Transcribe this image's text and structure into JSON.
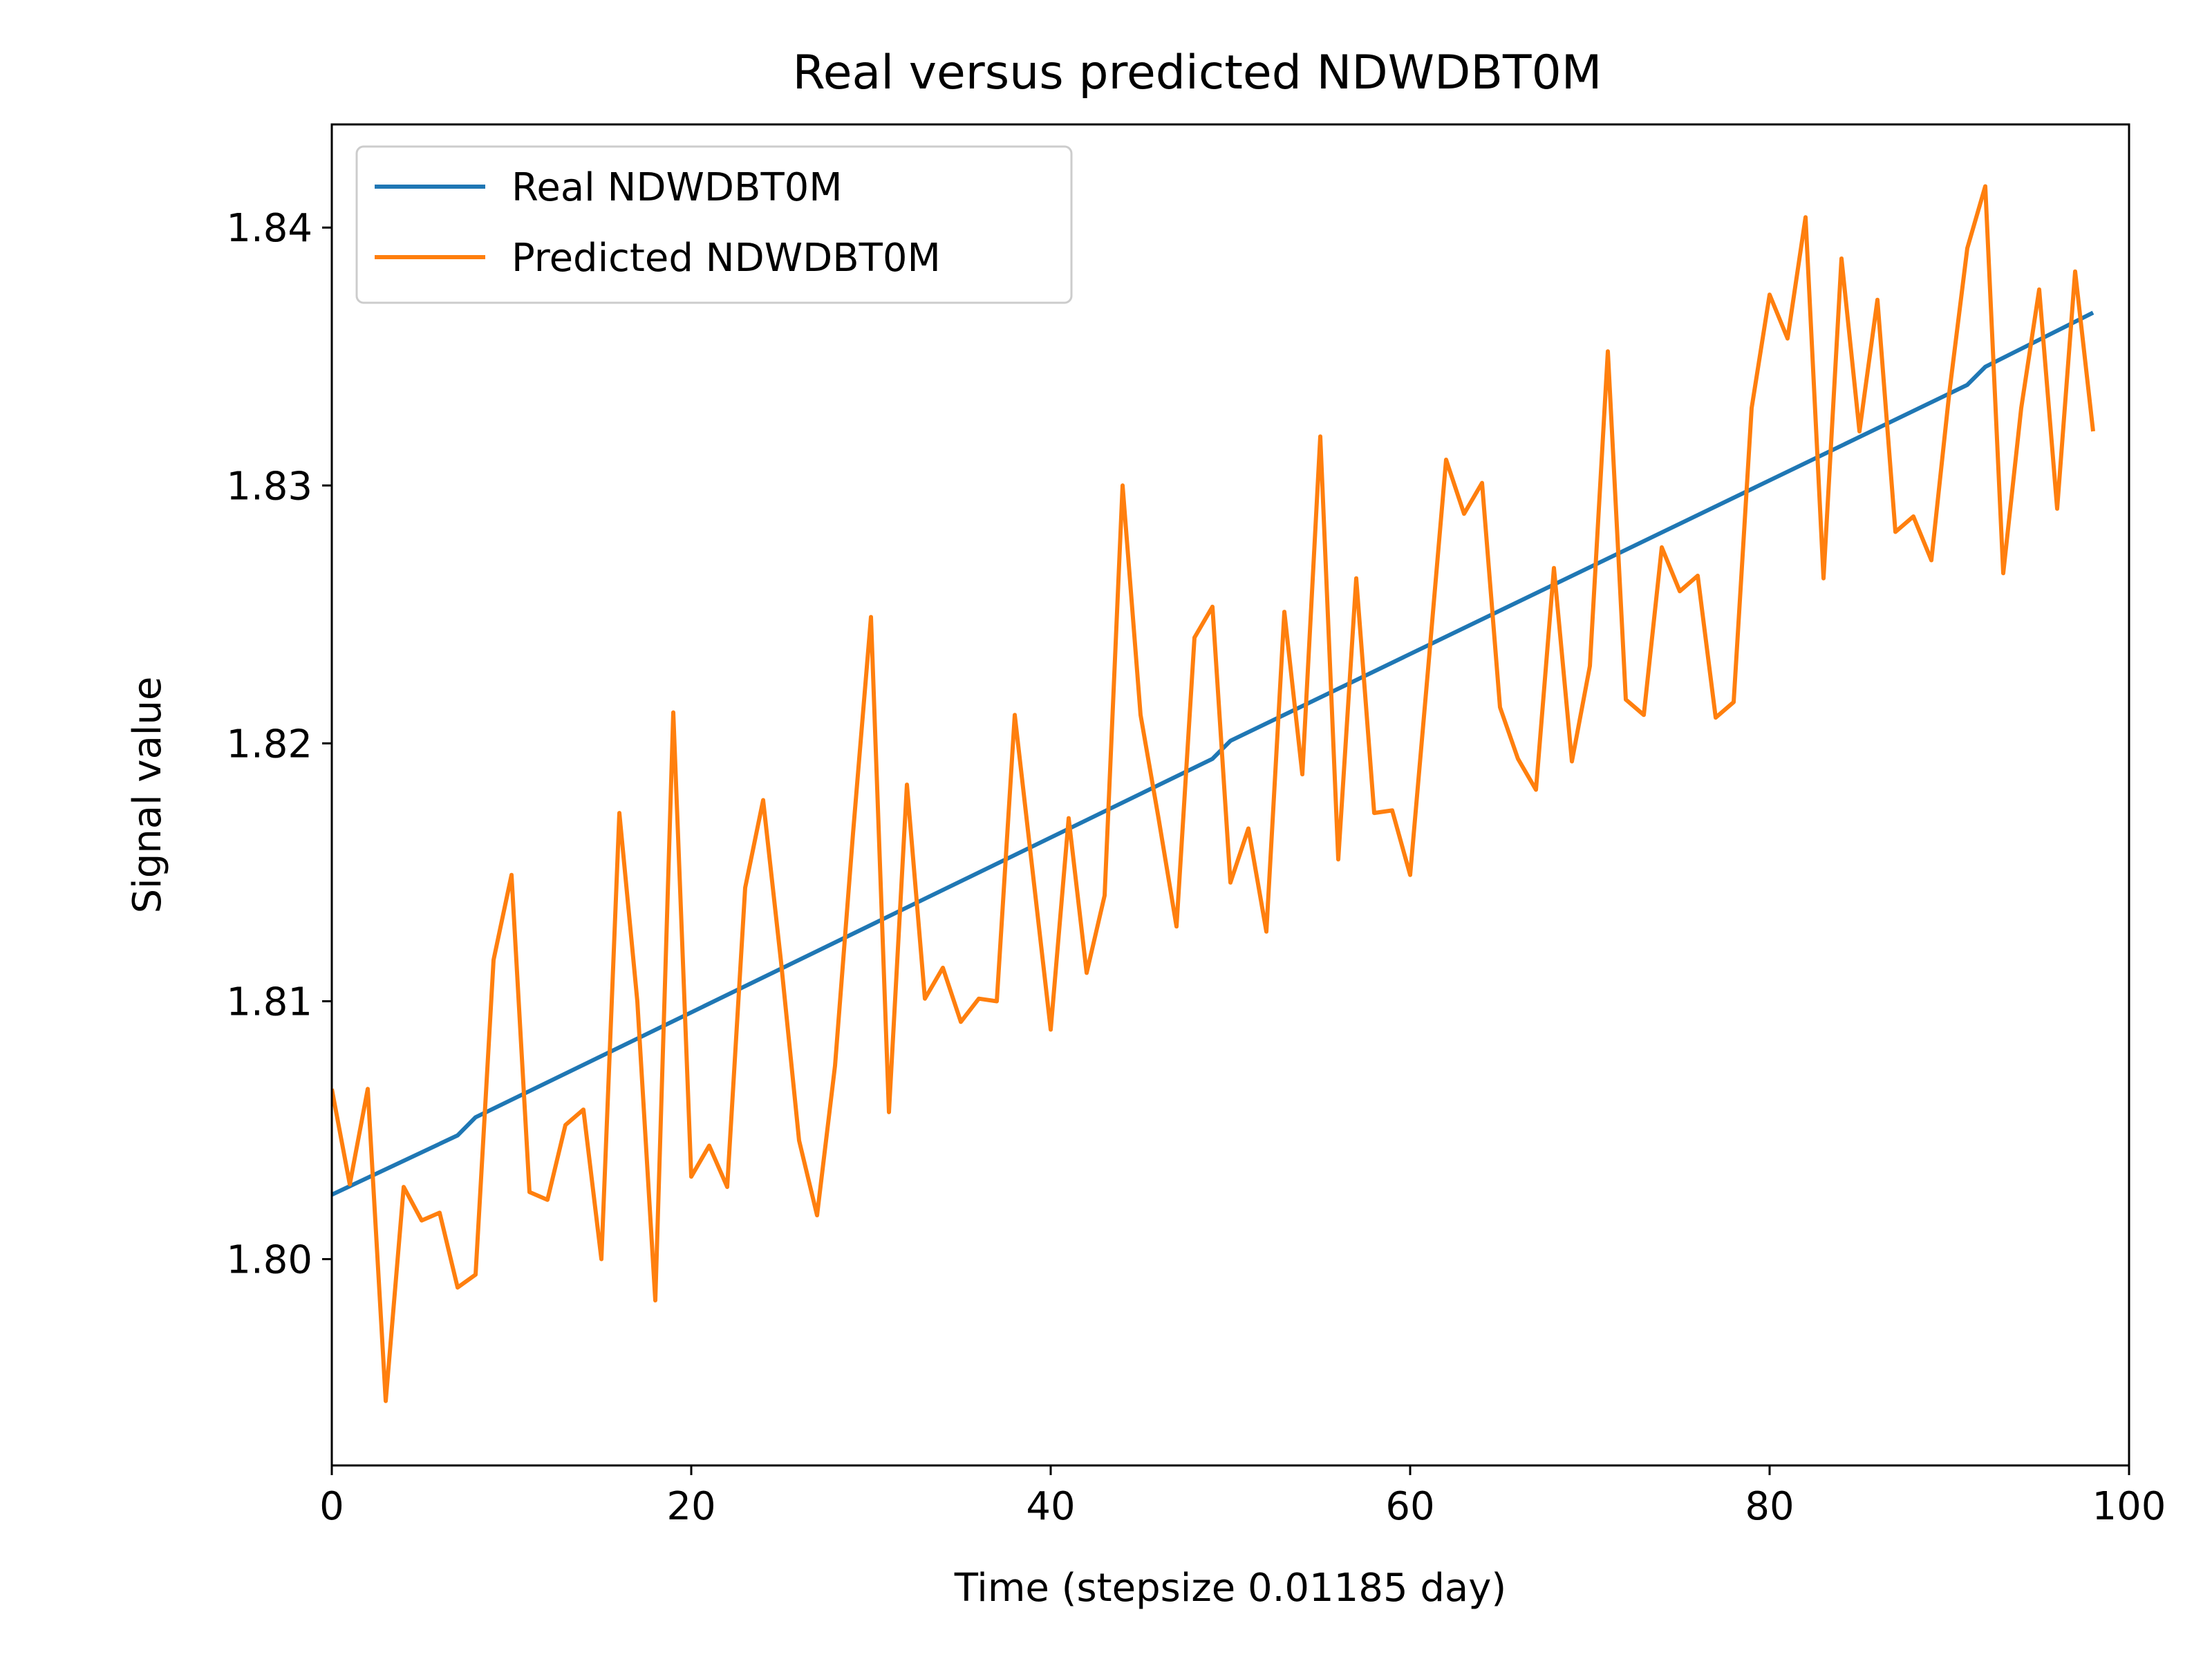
{
  "chart_data": {
    "type": "line",
    "title": "Real versus predicted NDWDBT0M",
    "xlabel": "Time (stepsize 0.01185 day)",
    "ylabel": "Signal value",
    "xlim": [
      0,
      100
    ],
    "ylim": [
      1.792,
      1.844
    ],
    "xticks": [
      0,
      20,
      40,
      60,
      80,
      100
    ],
    "xtick_labels": [
      "0",
      "20",
      "40",
      "60",
      "80",
      "100"
    ],
    "yticks": [
      1.8,
      1.81,
      1.82,
      1.83,
      1.84
    ],
    "ytick_labels": [
      "1.80",
      "1.81",
      "1.82",
      "1.83",
      "1.84"
    ],
    "grid": false,
    "legend_position": "upper-left",
    "series": [
      {
        "name": "Real NDWDBT0M",
        "color": "#1f77b4",
        "x": [
          0,
          7,
          8,
          49,
          50,
          91,
          92,
          98
        ],
        "y": [
          1.8025,
          1.8048,
          1.8055,
          1.8194,
          1.8201,
          1.8339,
          1.8346,
          1.8367
        ]
      },
      {
        "name": "Predicted NDWDBT0M",
        "color": "#ff7f0e",
        "x": [
          0,
          1,
          2,
          3,
          4,
          5,
          6,
          7,
          8,
          9,
          10,
          11,
          12,
          13,
          14,
          15,
          16,
          17,
          18,
          19,
          20,
          21,
          22,
          23,
          24,
          25,
          26,
          27,
          28,
          29,
          30,
          31,
          32,
          33,
          34,
          35,
          36,
          37,
          38,
          39,
          40,
          41,
          42,
          43,
          44,
          45,
          46,
          47,
          48,
          49,
          50,
          51,
          52,
          53,
          54,
          55,
          56,
          57,
          58,
          59,
          60,
          61,
          62,
          63,
          64,
          65,
          66,
          67,
          68,
          69,
          70,
          71,
          72,
          73,
          74,
          75,
          76,
          77,
          78,
          79,
          80,
          81,
          82,
          83,
          84,
          85,
          86,
          87,
          88,
          89,
          90,
          91,
          92,
          93,
          94,
          95,
          96,
          97,
          98
        ],
        "y": [
          1.8066,
          1.8029,
          1.8066,
          1.7945,
          1.8028,
          1.8015,
          1.8018,
          1.7989,
          1.7994,
          1.8116,
          1.8149,
          1.8026,
          1.8023,
          1.8052,
          1.8058,
          1.8,
          1.8173,
          1.81,
          1.7984,
          1.8212,
          1.8032,
          1.8044,
          1.8028,
          1.8144,
          1.8178,
          1.8115,
          1.8046,
          1.8017,
          1.8075,
          1.8165,
          1.8249,
          1.8057,
          1.8184,
          1.8101,
          1.8113,
          1.8092,
          1.8101,
          1.81,
          1.8211,
          1.815,
          1.8089,
          1.8171,
          1.8111,
          1.8141,
          1.83,
          1.8211,
          1.8171,
          1.8129,
          1.8241,
          1.8253,
          1.8146,
          1.8167,
          1.8127,
          1.8251,
          1.8188,
          1.8319,
          1.8155,
          1.8264,
          1.8173,
          1.8174,
          1.8149,
          1.8229,
          1.831,
          1.8289,
          1.8301,
          1.8214,
          1.8194,
          1.8182,
          1.8268,
          1.8193,
          1.823,
          1.8352,
          1.8217,
          1.8211,
          1.8276,
          1.8259,
          1.8265,
          1.821,
          1.8216,
          1.833,
          1.8374,
          1.8357,
          1.8404,
          1.8264,
          1.8388,
          1.8321,
          1.8372,
          1.8282,
          1.8288,
          1.8271,
          1.8336,
          1.8392,
          1.8416,
          1.8266,
          1.833,
          1.8376,
          1.8291,
          1.8383,
          1.8321
        ]
      }
    ]
  }
}
